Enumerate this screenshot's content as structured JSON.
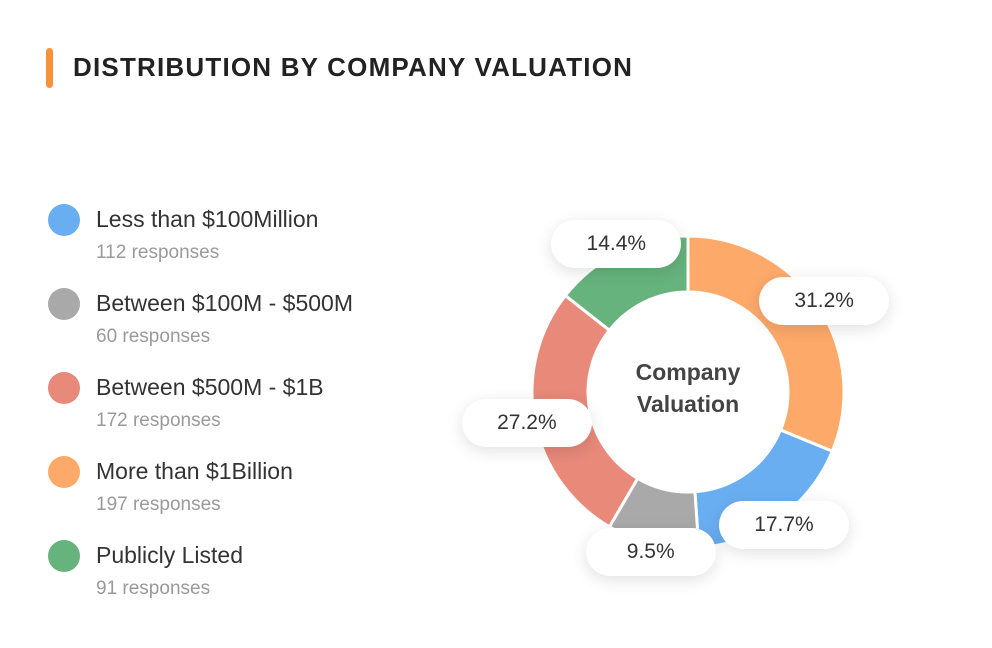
{
  "title": "DISTRIBUTION BY COMPANY VALUATION",
  "legend": [
    {
      "label": "Less than $100Million",
      "count": "112 responses",
      "color": "#6aaef2"
    },
    {
      "label": "Between $100M - $500M",
      "count": "60 responses",
      "color": "#a9a9a9"
    },
    {
      "label": "Between $500M - $1B",
      "count": "172 responses",
      "color": "#e8897a"
    },
    {
      "label": "More than $1Billion",
      "count": "197 responses",
      "color": "#fda96a"
    },
    {
      "label": "Publicly Listed",
      "count": "91 responses",
      "color": "#66b37d"
    }
  ],
  "chart_data": {
    "type": "pie",
    "variant": "donut",
    "center_label": "Company Valuation",
    "slices": [
      {
        "label": "More than $1Billion",
        "value": 31.2,
        "display": "31.2%",
        "responses": 197,
        "color": "#fda96a"
      },
      {
        "label": "Less than $100Million",
        "value": 17.7,
        "display": "17.7%",
        "responses": 112,
        "color": "#6aaef2"
      },
      {
        "label": "Between $100M - $500M",
        "value": 9.5,
        "display": "9.5%",
        "responses": 60,
        "color": "#a9a9a9"
      },
      {
        "label": "Between $500M - $1B",
        "value": 27.2,
        "display": "27.2%",
        "responses": 172,
        "color": "#e8897a"
      },
      {
        "label": "Publicly Listed",
        "value": 14.4,
        "display": "14.4%",
        "responses": 91,
        "color": "#66b37d"
      }
    ]
  }
}
